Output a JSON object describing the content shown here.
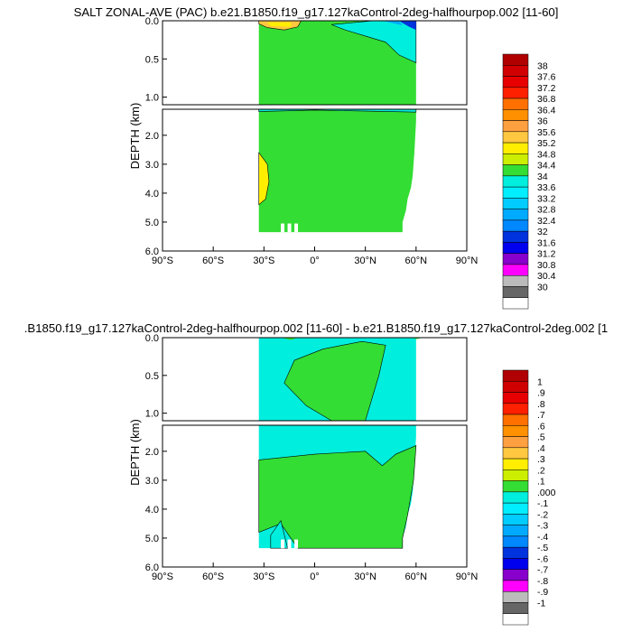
{
  "chart_data": [
    {
      "type": "contour",
      "title": "SALT ZONAL-AVE (PAC) b.e21.B1850.f19_g17.127kaControl-2deg-halfhourpop.002 [11-60]",
      "ylabel": "DEPTH (km)",
      "x_ticks": [
        "90°S",
        "60°S",
        "30°S",
        "0°",
        "30°N",
        "60°N",
        "90°N"
      ],
      "xlim": [
        -90,
        90
      ],
      "y_ticks_upper": [
        "0.0",
        "0.5",
        "1.0"
      ],
      "y_ticks_lower": [
        "2.0",
        "3.0",
        "4.0",
        "5.0",
        "6.0"
      ],
      "ylim_km": [
        0,
        6
      ],
      "upper_panel_range_km": [
        0,
        1.1
      ],
      "lower_panel_range_km": [
        1.1,
        6
      ],
      "ocean_lat_range": [
        -33,
        60
      ],
      "regions": [
        {
          "label": "34.4-34.8",
          "color": "#33dd33",
          "note": "background"
        },
        {
          "label": "34-34.4",
          "color": "#00eedd",
          "note": "upper ocean north of equator"
        },
        {
          "label": "34.8-35.2",
          "color": "#ffee00",
          "note": "subtropical south surface and deep south"
        },
        {
          "label": "<32",
          "color": "#0033dd",
          "note": "northern surface"
        }
      ],
      "legend_labels": [
        "38",
        "37.6",
        "37.2",
        "36.8",
        "36.4",
        "36",
        "35.6",
        "35.2",
        "34.8",
        "34.4",
        "34",
        "33.6",
        "33.2",
        "32.8",
        "32.4",
        "32",
        "31.6",
        "31.2",
        "30.8",
        "30.4",
        "30"
      ],
      "legend_colors": [
        "#b00000",
        "#d00000",
        "#e80000",
        "#ff2000",
        "#ff7000",
        "#ff9000",
        "#ffa040",
        "#ffc840",
        "#ffee00",
        "#ccee00",
        "#33dd33",
        "#00eedd",
        "#00eeff",
        "#00ccff",
        "#00aaff",
        "#0088ff",
        "#0033dd",
        "#0000ee",
        "#8800cc",
        "#ff00ff",
        "#bbbbbb",
        "#666666",
        "#ffffff"
      ]
    },
    {
      "type": "contour",
      "title": ".B1850.f19_g17.127kaControl-2deg-halfhourpop.002 [11-60] - b.e21.B1850.f19_g17.127kaControl-2deg.002 [1",
      "ylabel": "DEPTH (km)",
      "x_ticks": [
        "90°S",
        "60°S",
        "30°S",
        "0°",
        "30°N",
        "60°N",
        "90°N"
      ],
      "xlim": [
        -90,
        90
      ],
      "y_ticks_upper": [
        "0.0",
        "0.5",
        "1.0"
      ],
      "y_ticks_lower": [
        "2.0",
        "3.0",
        "4.0",
        "5.0",
        "6.0"
      ],
      "ylim_km": [
        0,
        6
      ],
      "upper_panel_range_km": [
        0,
        1.1
      ],
      "lower_panel_range_km": [
        1.1,
        6
      ],
      "ocean_lat_range": [
        -33,
        60
      ],
      "regions": [
        {
          "label": ".000 to .1",
          "color": "#00eedd",
          "note": "background"
        },
        {
          "label": ".1 to .2",
          "color": "#33dd33",
          "note": "central and northern deep water"
        }
      ],
      "legend_labels": [
        "1",
        ".9",
        ".8",
        ".7",
        ".6",
        ".5",
        ".4",
        ".3",
        ".2",
        ".1",
        ".000",
        "-.1",
        "-.2",
        "-.3",
        "-.4",
        "-.5",
        "-.6",
        "-.7",
        "-.8",
        "-.9",
        "-1"
      ],
      "legend_colors": [
        "#b00000",
        "#d00000",
        "#e80000",
        "#ff2000",
        "#ff7000",
        "#ff9000",
        "#ffa040",
        "#ffc840",
        "#ffee00",
        "#ccee00",
        "#33dd33",
        "#00eedd",
        "#00eeff",
        "#00ccff",
        "#00aaff",
        "#0088ff",
        "#0033dd",
        "#0000ee",
        "#8800cc",
        "#ff00ff",
        "#bbbbbb",
        "#666666",
        "#ffffff"
      ]
    }
  ]
}
